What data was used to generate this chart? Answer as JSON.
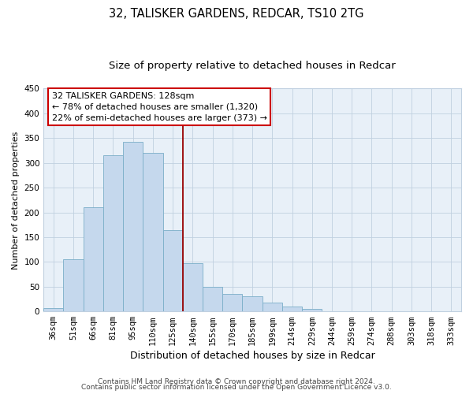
{
  "title": "32, TALISKER GARDENS, REDCAR, TS10 2TG",
  "subtitle": "Size of property relative to detached houses in Redcar",
  "xlabel": "Distribution of detached houses by size in Redcar",
  "ylabel": "Number of detached properties",
  "bar_labels": [
    "36sqm",
    "51sqm",
    "66sqm",
    "81sqm",
    "95sqm",
    "110sqm",
    "125sqm",
    "140sqm",
    "155sqm",
    "170sqm",
    "185sqm",
    "199sqm",
    "214sqm",
    "229sqm",
    "244sqm",
    "259sqm",
    "274sqm",
    "288sqm",
    "303sqm",
    "318sqm",
    "333sqm"
  ],
  "bar_values": [
    7,
    105,
    210,
    315,
    343,
    320,
    165,
    97,
    50,
    35,
    30,
    18,
    10,
    5,
    1,
    0,
    0,
    0,
    0,
    0,
    0
  ],
  "bar_color": "#c5d8ed",
  "bar_edge_color": "#7aaec8",
  "ylim": [
    0,
    450
  ],
  "yticks": [
    0,
    50,
    100,
    150,
    200,
    250,
    300,
    350,
    400,
    450
  ],
  "vline_x_index": 6,
  "vline_color": "#990000",
  "annotation_title": "32 TALISKER GARDENS: 128sqm",
  "annotation_line1": "← 78% of detached houses are smaller (1,320)",
  "annotation_line2": "22% of semi-detached houses are larger (373) →",
  "annotation_box_color": "#ffffff",
  "annotation_box_edge": "#cc0000",
  "footer1": "Contains HM Land Registry data © Crown copyright and database right 2024.",
  "footer2": "Contains public sector information licensed under the Open Government Licence v3.0.",
  "plot_bg_color": "#e8f0f8",
  "fig_bg_color": "#ffffff",
  "grid_color": "#c0d0e0",
  "title_fontsize": 10.5,
  "subtitle_fontsize": 9.5,
  "ylabel_fontsize": 8,
  "xlabel_fontsize": 9,
  "tick_fontsize": 7.5,
  "annot_fontsize": 8,
  "footer_fontsize": 6.5
}
